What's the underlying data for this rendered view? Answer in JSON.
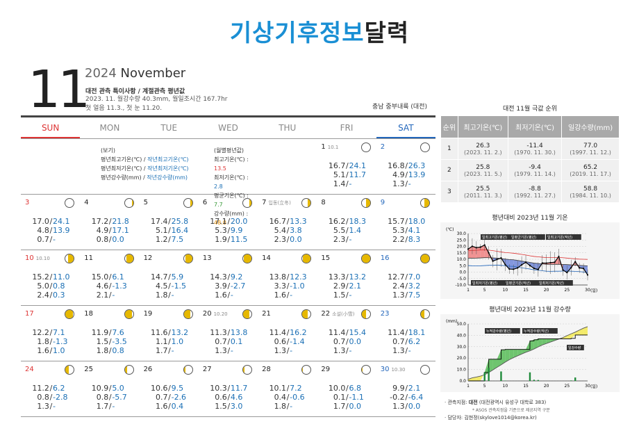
{
  "title_blue": "기상기후정보",
  "title_black": "달력",
  "month_num": "11",
  "year": "2024",
  "month_en": "November",
  "subtitle": "대전 관측 특이사항 / 계절관측 평년값",
  "sub_line1": "2023. 11. 월강수량 40.3mm, 월일조시간 167.7hr",
  "sub_line2": "첫 얼음 11.3., 첫 눈 11.20.",
  "region": "충남 중부내륙 (대전)",
  "weekdays": [
    "SUN",
    "MON",
    "TUE",
    "WED",
    "THU",
    "FRI",
    "SAT"
  ],
  "legend": {
    "left_head": "(보기)",
    "left_rows": [
      {
        "a": "평년최고기온(℃) / ",
        "b": "작년최고기온(℃)"
      },
      {
        "a": "평년최저기온(℃) / ",
        "b": "작년최저기온(℃)"
      },
      {
        "a": "평년강수량(mm) / ",
        "b": "작년강수량(mm)"
      }
    ],
    "right_head": "(월별평년값)",
    "right_rows": [
      {
        "label": "최고기온(℃) : ",
        "value": "13.5",
        "color": "#d33"
      },
      {
        "label": "최저기온(℃) : ",
        "value": "2.8",
        "color": "#1a6fb5"
      },
      {
        "label": "평균기온(℃) : ",
        "value": "7.7",
        "color": "#3a9a3a"
      },
      {
        "label": "강수량(mm) : ",
        "value": "48.0",
        "color": "#e08a00"
      }
    ]
  },
  "days": [
    {
      "d": "1",
      "note": "10.1",
      "moon": 0.0,
      "wax": true,
      "r": [
        [
          "16.7",
          "24.1"
        ],
        [
          "5.1",
          "11.7"
        ],
        [
          "1.4",
          "-"
        ]
      ]
    },
    {
      "d": "2",
      "note": "",
      "moon": 0.02,
      "wax": true,
      "r": [
        [
          "16.8",
          "26.3"
        ],
        [
          "4.9",
          "13.9"
        ],
        [
          "1.3",
          "-"
        ]
      ]
    },
    {
      "d": "3",
      "note": "",
      "moon": 0.05,
      "wax": true,
      "r": [
        [
          "17.0",
          "24.1"
        ],
        [
          "4.8",
          "13.9"
        ],
        [
          "0.7",
          "-"
        ]
      ]
    },
    {
      "d": "4",
      "note": "",
      "moon": 0.12,
      "wax": true,
      "r": [
        [
          "17.2",
          "21.8"
        ],
        [
          "4.9",
          "17.1"
        ],
        [
          "0.8",
          "0.0"
        ]
      ]
    },
    {
      "d": "5",
      "note": "",
      "moon": 0.2,
      "wax": true,
      "r": [
        [
          "17.4",
          "25.8"
        ],
        [
          "5.1",
          "16.4"
        ],
        [
          "1.2",
          "7.5"
        ]
      ]
    },
    {
      "d": "6",
      "note": "",
      "moon": 0.3,
      "wax": true,
      "r": [
        [
          "17.1",
          "20.0"
        ],
        [
          "5.3",
          "9.9"
        ],
        [
          "1.9",
          "11.5"
        ]
      ]
    },
    {
      "d": "7",
      "note": "입동(立冬)",
      "moon": 0.4,
      "wax": true,
      "r": [
        [
          "16.7",
          "13.3"
        ],
        [
          "5.4",
          "3.8"
        ],
        [
          "2.3",
          "0.0"
        ]
      ]
    },
    {
      "d": "8",
      "note": "",
      "moon": 0.5,
      "wax": true,
      "r": [
        [
          "16.2",
          "18.3"
        ],
        [
          "5.5",
          "1.4"
        ],
        [
          "2.3",
          "-"
        ]
      ]
    },
    {
      "d": "9",
      "note": "",
      "moon": 0.6,
      "wax": true,
      "r": [
        [
          "15.7",
          "18.0"
        ],
        [
          "5.3",
          "4.1"
        ],
        [
          "2.2",
          "8.3"
        ]
      ]
    },
    {
      "d": "10",
      "note": "10.10",
      "moon": 0.68,
      "wax": true,
      "r": [
        [
          "15.2",
          "11.0"
        ],
        [
          "5.0",
          "0.8"
        ],
        [
          "2.4",
          "0.3"
        ]
      ]
    },
    {
      "d": "11",
      "note": "",
      "moon": 0.76,
      "wax": true,
      "r": [
        [
          "15.0",
          "6.1"
        ],
        [
          "4.6",
          "-1.3"
        ],
        [
          "2.1",
          "-"
        ]
      ]
    },
    {
      "d": "12",
      "note": "",
      "moon": 0.84,
      "wax": true,
      "r": [
        [
          "14.7",
          "5.9"
        ],
        [
          "4.5",
          "-1.5"
        ],
        [
          "1.8",
          "-"
        ]
      ]
    },
    {
      "d": "13",
      "note": "",
      "moon": 0.9,
      "wax": true,
      "r": [
        [
          "14.3",
          "9.2"
        ],
        [
          "3.9",
          "-2.7"
        ],
        [
          "1.6",
          "-"
        ]
      ]
    },
    {
      "d": "14",
      "note": "",
      "moon": 0.95,
      "wax": true,
      "r": [
        [
          "13.8",
          "12.3"
        ],
        [
          "3.3",
          "-1.0"
        ],
        [
          "1.6",
          "-"
        ]
      ]
    },
    {
      "d": "15",
      "note": "",
      "moon": 1.0,
      "wax": true,
      "r": [
        [
          "13.3",
          "13.2"
        ],
        [
          "2.9",
          "2.1"
        ],
        [
          "1.5",
          "-"
        ]
      ]
    },
    {
      "d": "16",
      "note": "",
      "moon": 0.97,
      "wax": false,
      "r": [
        [
          "12.7",
          "7.0"
        ],
        [
          "2.4",
          "3.2"
        ],
        [
          "1.3",
          "7.5"
        ]
      ]
    },
    {
      "d": "17",
      "note": "",
      "moon": 0.93,
      "wax": false,
      "r": [
        [
          "12.2",
          "7.1"
        ],
        [
          "1.8",
          "-1.3"
        ],
        [
          "1.6",
          "1.0"
        ]
      ]
    },
    {
      "d": "18",
      "note": "",
      "moon": 0.87,
      "wax": false,
      "r": [
        [
          "11.9",
          "7.6"
        ],
        [
          "1.5",
          "-3.5"
        ],
        [
          "1.8",
          "0.8"
        ]
      ]
    },
    {
      "d": "19",
      "note": "",
      "moon": 0.8,
      "wax": false,
      "r": [
        [
          "11.6",
          "13.2"
        ],
        [
          "1.1",
          "1.0"
        ],
        [
          "1.7",
          "-"
        ]
      ]
    },
    {
      "d": "20",
      "note": "10.20",
      "moon": 0.72,
      "wax": false,
      "r": [
        [
          "11.3",
          "13.8"
        ],
        [
          "0.7",
          "0.1"
        ],
        [
          "1.3",
          "-"
        ]
      ]
    },
    {
      "d": "21",
      "note": "",
      "moon": 0.64,
      "wax": false,
      "r": [
        [
          "11.4",
          "16.2"
        ],
        [
          "0.6",
          "-1.4"
        ],
        [
          "1.3",
          "-"
        ]
      ]
    },
    {
      "d": "22",
      "note": "소설(小雪)",
      "moon": 0.55,
      "wax": false,
      "r": [
        [
          "11.4",
          "15.4"
        ],
        [
          "0.7",
          "0.0"
        ],
        [
          "1.3",
          "-"
        ]
      ]
    },
    {
      "d": "23",
      "note": "",
      "moon": 0.45,
      "wax": false,
      "r": [
        [
          "11.4",
          "18.1"
        ],
        [
          "0.7",
          "6.2"
        ],
        [
          "1.3",
          "-"
        ]
      ]
    },
    {
      "d": "24",
      "note": "",
      "moon": 0.36,
      "wax": false,
      "r": [
        [
          "11.2",
          "6.2"
        ],
        [
          "0.8",
          "-2.8"
        ],
        [
          "1.3",
          "-"
        ]
      ]
    },
    {
      "d": "25",
      "note": "",
      "moon": 0.28,
      "wax": false,
      "r": [
        [
          "10.9",
          "5.0"
        ],
        [
          "0.8",
          "-5.7"
        ],
        [
          "1.7",
          "-"
        ]
      ]
    },
    {
      "d": "26",
      "note": "",
      "moon": 0.2,
      "wax": false,
      "r": [
        [
          "10.6",
          "9.5"
        ],
        [
          "0.7",
          "-2.6"
        ],
        [
          "1.6",
          "0.4"
        ]
      ]
    },
    {
      "d": "27",
      "note": "",
      "moon": 0.13,
      "wax": false,
      "r": [
        [
          "10.3",
          "11.7"
        ],
        [
          "0.6",
          "4.6"
        ],
        [
          "1.5",
          "3.0"
        ]
      ]
    },
    {
      "d": "28",
      "note": "",
      "moon": 0.07,
      "wax": false,
      "r": [
        [
          "10.1",
          "7.2"
        ],
        [
          "0.4",
          "-0.6"
        ],
        [
          "1.8",
          "-"
        ]
      ]
    },
    {
      "d": "29",
      "note": "",
      "moon": 0.03,
      "wax": false,
      "r": [
        [
          "10.0",
          "6.8"
        ],
        [
          "0.1",
          "-1.1"
        ],
        [
          "1.7",
          "0.0"
        ]
      ]
    },
    {
      "d": "30",
      "note": "10.30",
      "moon": 0.0,
      "wax": false,
      "r": [
        [
          "9.9",
          "2.1"
        ],
        [
          "-0.2",
          "-6.4"
        ],
        [
          "1.3",
          "0.0"
        ]
      ]
    }
  ],
  "rank": {
    "title": "대전 11월 극값 순위",
    "headers": [
      "순위",
      "최고기온(℃)",
      "최저기온(℃)",
      "일강수량(mm)"
    ],
    "rows": [
      {
        "n": "1",
        "c": [
          [
            "26.3",
            "(2023. 11. 2.)"
          ],
          [
            "-11.4",
            "(1970. 11. 30.)"
          ],
          [
            "77.0",
            "(1997. 11. 12.)"
          ]
        ]
      },
      {
        "n": "2",
        "c": [
          [
            "25.8",
            "(2023. 11. 5.)"
          ],
          [
            "-9.4",
            "(1979. 11. 14.)"
          ],
          [
            "65.2",
            "(2019. 11. 17.)"
          ]
        ]
      },
      {
        "n": "3",
        "c": [
          [
            "25.5",
            "(2011. 11. 3.)"
          ],
          [
            "-8.8",
            "(1992. 11. 27.)"
          ],
          [
            "58.8",
            "(1984. 11. 10.)"
          ]
        ]
      }
    ]
  },
  "temp_chart": {
    "title": "평년대비 2023년 11월 기온",
    "unit": "(℃)",
    "xunit": "(일)",
    "labels_top": [
      "일최고기온(평년)",
      "일평균기온(평년)",
      "일최고기온(작년)"
    ],
    "labels_bottom": [
      "일최저기온(평년)",
      "일평균기온(작년)",
      "일최저기온(작년)"
    ],
    "yticks": [
      "30.0",
      "25.0",
      "20.0",
      "15.0",
      "10.0",
      "5.0",
      "0.0",
      "-5.0",
      "-10.0"
    ],
    "xticks": [
      "1",
      "5",
      "10",
      "15",
      "20",
      "25",
      "30"
    ]
  },
  "rain_chart": {
    "title": "평년대비 2023년 11월 강수량",
    "unit": "(mm)",
    "xunit": "(일)",
    "labels": [
      "누적강수량(평년)",
      "누적강수량(작년)",
      "일강수량"
    ],
    "yticks": [
      "50.0",
      "40.0",
      "30.0",
      "20.0",
      "10.0",
      "0.0"
    ],
    "xticks": [
      "1",
      "5",
      "10",
      "15",
      "20",
      "25",
      "30"
    ]
  },
  "footer": {
    "station_label": "관측지점: ",
    "station": "대전",
    "station_addr": " (대전광역시 유성구 대학로 383)",
    "note": "* ASOS 관측지점을 기준으로 제공지역 구분",
    "contact_label": "담당자: ",
    "contact": "김현정(skylove1014@korea.kr)"
  }
}
